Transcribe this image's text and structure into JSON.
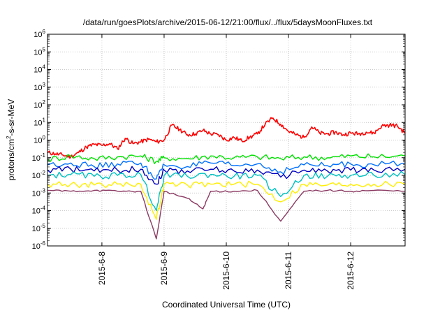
{
  "chart_data": {
    "type": "line",
    "title": "/data/run/goesPlots/archive/2015-06-12/21:00/flux/../flux/5daysMoonFluxes.txt",
    "xlabel": "Coordinated Universal Time (UTC)",
    "ylabel": {
      "prefix": "protons/cm",
      "sup": "2",
      "suffix": "-s-sr-MeV"
    },
    "y_scale": "log",
    "ylim": [
      -6,
      6
    ],
    "y_ticks": [
      {
        "base": "10",
        "exp": "-6"
      },
      {
        "base": "10",
        "exp": "-5"
      },
      {
        "base": "10",
        "exp": "-4"
      },
      {
        "base": "10",
        "exp": "-3"
      },
      {
        "base": "10",
        "exp": "-2"
      },
      {
        "base": "10",
        "exp": "-1"
      },
      {
        "base": "10",
        "exp": "0"
      },
      {
        "base": "10",
        "exp": "1"
      },
      {
        "base": "10",
        "exp": "2"
      },
      {
        "base": "10",
        "exp": "3"
      },
      {
        "base": "10",
        "exp": "4"
      },
      {
        "base": "10",
        "exp": "5"
      },
      {
        "base": "10",
        "exp": "6"
      }
    ],
    "xlim": [
      "2015-06-07 03:00",
      "2015-06-12 21:00"
    ],
    "x_ticks": [
      "2015-6-8",
      "2015-6-9",
      "2015-6-10",
      "2015-6-11",
      "2015-6-12"
    ],
    "grid": true,
    "legend": "none",
    "series": [
      {
        "color": "#ff0000",
        "points": [
          [
            "2015-06-07 03:00",
            -0.7
          ],
          [
            "2015-06-07 06:00",
            -0.78
          ],
          [
            "2015-06-07 09:00",
            -0.85
          ],
          [
            "2015-06-07 12:00",
            -0.95
          ],
          [
            "2015-06-07 15:00",
            -0.7
          ],
          [
            "2015-06-07 18:00",
            -0.4
          ],
          [
            "2015-06-07 21:00",
            -0.25
          ],
          [
            "2015-06-08 00:00",
            -0.3
          ],
          [
            "2015-06-08 03:00",
            -0.2
          ],
          [
            "2015-06-08 06:00",
            -0.5
          ],
          [
            "2015-06-08 09:00",
            0.1
          ],
          [
            "2015-06-08 12:00",
            -0.2
          ],
          [
            "2015-06-08 15:00",
            -0.1
          ],
          [
            "2015-06-08 18:00",
            0.05
          ],
          [
            "2015-06-08 21:00",
            -0.1
          ],
          [
            "2015-06-09 00:00",
            0.0
          ],
          [
            "2015-06-09 03:00",
            0.85
          ],
          [
            "2015-06-09 06:00",
            0.6
          ],
          [
            "2015-06-09 09:00",
            0.3
          ],
          [
            "2015-06-09 12:00",
            0.35
          ],
          [
            "2015-06-09 15:00",
            0.55
          ],
          [
            "2015-06-09 18:00",
            0.35
          ],
          [
            "2015-06-09 21:00",
            0.3
          ],
          [
            "2015-06-10 00:00",
            0.0
          ],
          [
            "2015-06-10 03:00",
            0.15
          ],
          [
            "2015-06-10 06:00",
            -0.05
          ],
          [
            "2015-06-10 09:00",
            0.15
          ],
          [
            "2015-06-10 12:00",
            0.35
          ],
          [
            "2015-06-10 15:00",
            0.9
          ],
          [
            "2015-06-10 18:00",
            1.25
          ],
          [
            "2015-06-10 21:00",
            0.9
          ],
          [
            "2015-06-11 00:00",
            0.5
          ],
          [
            "2015-06-11 03:00",
            0.3
          ],
          [
            "2015-06-11 06:00",
            0.15
          ],
          [
            "2015-06-11 09:00",
            0.75
          ],
          [
            "2015-06-11 12:00",
            0.4
          ],
          [
            "2015-06-11 15:00",
            0.35
          ],
          [
            "2015-06-11 18:00",
            0.45
          ],
          [
            "2015-06-11 21:00",
            0.3
          ],
          [
            "2015-06-12 00:00",
            0.4
          ],
          [
            "2015-06-12 03:00",
            0.35
          ],
          [
            "2015-06-12 06:00",
            0.45
          ],
          [
            "2015-06-12 09:00",
            0.4
          ],
          [
            "2015-06-12 12:00",
            0.8
          ],
          [
            "2015-06-12 15:00",
            0.85
          ],
          [
            "2015-06-12 18:00",
            0.8
          ],
          [
            "2015-06-12 21:00",
            0.4
          ]
        ]
      },
      {
        "color": "#00e000",
        "points": [
          [
            "2015-06-07 03:00",
            -1.1
          ],
          [
            "2015-06-07 12:00",
            -0.9
          ],
          [
            "2015-06-07 21:00",
            -1.05
          ],
          [
            "2015-06-08 06:00",
            -0.95
          ],
          [
            "2015-06-08 15:00",
            -0.9
          ],
          [
            "2015-06-08 21:00",
            -1.2
          ],
          [
            "2015-06-09 00:00",
            -1.0
          ],
          [
            "2015-06-09 09:00",
            -1.05
          ],
          [
            "2015-06-09 18:00",
            -0.9
          ],
          [
            "2015-06-10 03:00",
            -1.0
          ],
          [
            "2015-06-10 12:00",
            -0.95
          ],
          [
            "2015-06-10 21:00",
            -1.05
          ],
          [
            "2015-06-11 06:00",
            -0.95
          ],
          [
            "2015-06-11 15:00",
            -1.0
          ],
          [
            "2015-06-12 00:00",
            -0.9
          ],
          [
            "2015-06-12 09:00",
            -0.95
          ],
          [
            "2015-06-12 21:00",
            -0.9
          ]
        ]
      },
      {
        "color": "#0070ff",
        "points": [
          [
            "2015-06-07 03:00",
            -1.4
          ],
          [
            "2015-06-07 12:00",
            -1.3
          ],
          [
            "2015-06-07 21:00",
            -1.5
          ],
          [
            "2015-06-08 06:00",
            -1.35
          ],
          [
            "2015-06-08 15:00",
            -1.3
          ],
          [
            "2015-06-08 21:00",
            -2.2
          ],
          [
            "2015-06-09 00:00",
            -1.4
          ],
          [
            "2015-06-09 09:00",
            -1.5
          ],
          [
            "2015-06-09 18:00",
            -1.3
          ],
          [
            "2015-06-10 03:00",
            -1.45
          ],
          [
            "2015-06-10 12:00",
            -1.35
          ],
          [
            "2015-06-10 21:00",
            -1.8
          ],
          [
            "2015-06-11 06:00",
            -1.4
          ],
          [
            "2015-06-11 15:00",
            -1.45
          ],
          [
            "2015-06-12 00:00",
            -1.35
          ],
          [
            "2015-06-12 09:00",
            -1.4
          ],
          [
            "2015-06-12 21:00",
            -1.3
          ]
        ]
      },
      {
        "color": "#0000c0",
        "points": [
          [
            "2015-06-07 03:00",
            -1.7
          ],
          [
            "2015-06-07 12:00",
            -1.65
          ],
          [
            "2015-06-07 21:00",
            -1.75
          ],
          [
            "2015-06-08 06:00",
            -1.7
          ],
          [
            "2015-06-08 15:00",
            -1.65
          ],
          [
            "2015-06-08 21:00",
            -2.5
          ],
          [
            "2015-06-09 00:00",
            -1.7
          ],
          [
            "2015-06-09 09:00",
            -1.75
          ],
          [
            "2015-06-09 18:00",
            -1.65
          ],
          [
            "2015-06-10 03:00",
            -1.75
          ],
          [
            "2015-06-10 12:00",
            -1.7
          ],
          [
            "2015-06-10 21:00",
            -2.1
          ],
          [
            "2015-06-11 06:00",
            -1.7
          ],
          [
            "2015-06-11 15:00",
            -1.75
          ],
          [
            "2015-06-12 00:00",
            -1.7
          ],
          [
            "2015-06-12 09:00",
            -1.7
          ],
          [
            "2015-06-12 21:00",
            -1.65
          ]
        ]
      },
      {
        "color": "#00c0c0",
        "points": [
          [
            "2015-06-07 03:00",
            -2.0
          ],
          [
            "2015-06-07 12:00",
            -1.95
          ],
          [
            "2015-06-07 21:00",
            -2.05
          ],
          [
            "2015-06-08 06:00",
            -2.0
          ],
          [
            "2015-06-08 15:00",
            -1.95
          ],
          [
            "2015-06-08 21:00",
            -4.0
          ],
          [
            "2015-06-09 00:00",
            -2.0
          ],
          [
            "2015-06-09 09:00",
            -2.05
          ],
          [
            "2015-06-09 18:00",
            -1.95
          ],
          [
            "2015-06-10 03:00",
            -2.05
          ],
          [
            "2015-06-10 12:00",
            -2.0
          ],
          [
            "2015-06-10 21:00",
            -3.2
          ],
          [
            "2015-06-11 06:00",
            -2.0
          ],
          [
            "2015-06-11 15:00",
            -2.05
          ],
          [
            "2015-06-12 00:00",
            -2.0
          ],
          [
            "2015-06-12 09:00",
            -2.0
          ],
          [
            "2015-06-12 21:00",
            -1.95
          ]
        ]
      },
      {
        "color": "#ffee00",
        "points": [
          [
            "2015-06-07 03:00",
            -2.5
          ],
          [
            "2015-06-07 12:00",
            -2.5
          ],
          [
            "2015-06-07 21:00",
            -2.55
          ],
          [
            "2015-06-08 06:00",
            -2.5
          ],
          [
            "2015-06-08 15:00",
            -2.5
          ],
          [
            "2015-06-08 21:00",
            -4.5
          ],
          [
            "2015-06-09 00:00",
            -2.5
          ],
          [
            "2015-06-09 09:00",
            -2.55
          ],
          [
            "2015-06-09 18:00",
            -2.5
          ],
          [
            "2015-06-10 03:00",
            -2.5
          ],
          [
            "2015-06-10 12:00",
            -2.5
          ],
          [
            "2015-06-10 21:00",
            -3.5
          ],
          [
            "2015-06-11 06:00",
            -2.5
          ],
          [
            "2015-06-11 15:00",
            -2.55
          ],
          [
            "2015-06-12 00:00",
            -2.5
          ],
          [
            "2015-06-12 09:00",
            -2.5
          ],
          [
            "2015-06-12 21:00",
            -2.5
          ]
        ]
      },
      {
        "color": "#8b3a62",
        "points": [
          [
            "2015-06-07 03:00",
            -2.85
          ],
          [
            "2015-06-07 12:00",
            -2.9
          ],
          [
            "2015-06-07 21:00",
            -2.85
          ],
          [
            "2015-06-08 06:00",
            -2.9
          ],
          [
            "2015-06-08 15:00",
            -2.9
          ],
          [
            "2015-06-08 21:00",
            -5.6
          ],
          [
            "2015-06-09 00:00",
            -2.9
          ],
          [
            "2015-06-09 09:00",
            -3.3
          ],
          [
            "2015-06-09 15:00",
            -3.9
          ],
          [
            "2015-06-09 18:00",
            -2.9
          ],
          [
            "2015-06-10 03:00",
            -2.9
          ],
          [
            "2015-06-10 12:00",
            -2.85
          ],
          [
            "2015-06-10 21:00",
            -4.6
          ],
          [
            "2015-06-11 06:00",
            -2.9
          ],
          [
            "2015-06-11 15:00",
            -2.85
          ],
          [
            "2015-06-12 00:00",
            -2.9
          ],
          [
            "2015-06-12 09:00",
            -2.85
          ],
          [
            "2015-06-12 21:00",
            -2.9
          ]
        ]
      }
    ]
  }
}
